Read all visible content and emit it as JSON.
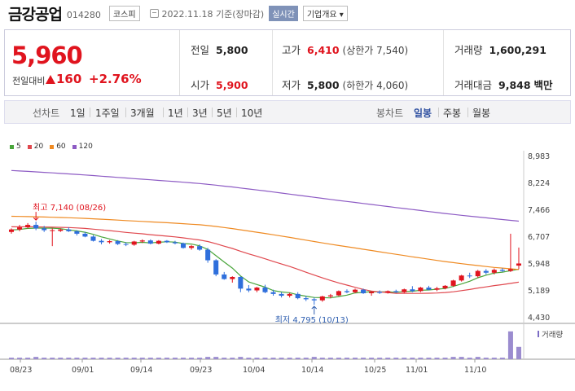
{
  "header": {
    "title": "금강공업",
    "code": "014280",
    "market": "코스피",
    "date": "2022.11.18 기준(장마감)",
    "realtime": "실시간",
    "overview": "기업개요 ▾"
  },
  "quote": {
    "price": "5,960",
    "change_label": "전일대비",
    "change": "160",
    "change_pct": "+2.76%",
    "prev_label": "전일",
    "prev": "5,800",
    "high_label": "고가",
    "high": "6,410",
    "upper_limit": "(상한가 7,540)",
    "volume_label": "거래량",
    "volume": "1,600,291",
    "open_label": "시가",
    "open": "5,900",
    "low_label": "저가",
    "low": "5,800",
    "lower_limit": "(하한가 4,060)",
    "amount_label": "거래대금",
    "amount": "9,848",
    "amount_unit": "백만"
  },
  "periods": {
    "line_label": "선차트",
    "line_items": [
      "1일",
      "1주일",
      "3개월",
      "1년",
      "3년",
      "5년",
      "10년"
    ],
    "candle_label": "봉차트",
    "candle_items": [
      "일봉",
      "주봉",
      "월봉"
    ],
    "active": "일봉"
  },
  "colors": {
    "up": "#e0141e",
    "down": "#2f6fdc",
    "ma5": "#49a53a",
    "ma20": "#e0484e",
    "ma60": "#ef8a22",
    "ma120": "#8d5bc4"
  },
  "chart_data": {
    "type": "candlestick",
    "legend": [
      "5",
      "20",
      "60",
      "120"
    ],
    "y_ticks": [
      8983,
      8224,
      7466,
      6707,
      5948,
      5189,
      4430
    ],
    "ylim": [
      4430,
      8983
    ],
    "x_labels": [
      "08/23",
      "09/01",
      "09/14",
      "09/23",
      "10/04",
      "10/14",
      "10/25",
      "11/01",
      "11/10"
    ],
    "high_annotation": "최고 7,140 (08/26)",
    "low_annotation": "최저 4,795 (10/13)",
    "volume_label": "거래량",
    "candles": [
      {
        "o": 6850,
        "h": 6950,
        "l": 6800,
        "c": 6920
      },
      {
        "o": 6920,
        "h": 7050,
        "l": 6870,
        "c": 6980
      },
      {
        "o": 6980,
        "h": 7100,
        "l": 6950,
        "c": 7050
      },
      {
        "o": 7050,
        "h": 7140,
        "l": 6900,
        "c": 6950
      },
      {
        "o": 6950,
        "h": 7020,
        "l": 6850,
        "c": 6900
      },
      {
        "o": 6900,
        "h": 6950,
        "l": 6450,
        "c": 6900
      },
      {
        "o": 6880,
        "h": 6950,
        "l": 6850,
        "c": 6920
      },
      {
        "o": 6920,
        "h": 6980,
        "l": 6850,
        "c": 6870
      },
      {
        "o": 6870,
        "h": 6900,
        "l": 6750,
        "c": 6800
      },
      {
        "o": 6800,
        "h": 6850,
        "l": 6700,
        "c": 6720
      },
      {
        "o": 6720,
        "h": 6760,
        "l": 6580,
        "c": 6600
      },
      {
        "o": 6600,
        "h": 6650,
        "l": 6500,
        "c": 6560
      },
      {
        "o": 6560,
        "h": 6620,
        "l": 6520,
        "c": 6590
      },
      {
        "o": 6590,
        "h": 6620,
        "l": 6480,
        "c": 6510
      },
      {
        "o": 6510,
        "h": 6560,
        "l": 6450,
        "c": 6490
      },
      {
        "o": 6490,
        "h": 6600,
        "l": 6460,
        "c": 6580
      },
      {
        "o": 6580,
        "h": 6640,
        "l": 6540,
        "c": 6610
      },
      {
        "o": 6610,
        "h": 6640,
        "l": 6500,
        "c": 6520
      },
      {
        "o": 6520,
        "h": 6620,
        "l": 6500,
        "c": 6600
      },
      {
        "o": 6600,
        "h": 6620,
        "l": 6540,
        "c": 6560
      },
      {
        "o": 6560,
        "h": 6600,
        "l": 6500,
        "c": 6530
      },
      {
        "o": 6530,
        "h": 6550,
        "l": 6380,
        "c": 6400
      },
      {
        "o": 6400,
        "h": 6480,
        "l": 6350,
        "c": 6450
      },
      {
        "o": 6450,
        "h": 6500,
        "l": 6320,
        "c": 6350
      },
      {
        "o": 6350,
        "h": 6400,
        "l": 5980,
        "c": 6050
      },
      {
        "o": 6050,
        "h": 6080,
        "l": 5600,
        "c": 5650
      },
      {
        "o": 5650,
        "h": 5720,
        "l": 5500,
        "c": 5520
      },
      {
        "o": 5520,
        "h": 5600,
        "l": 5420,
        "c": 5580
      },
      {
        "o": 5580,
        "h": 5600,
        "l": 5150,
        "c": 5250
      },
      {
        "o": 5250,
        "h": 5350,
        "l": 5150,
        "c": 5200
      },
      {
        "o": 5200,
        "h": 5300,
        "l": 5150,
        "c": 5280
      },
      {
        "o": 5280,
        "h": 5360,
        "l": 5120,
        "c": 5150
      },
      {
        "o": 5150,
        "h": 5220,
        "l": 5050,
        "c": 5100
      },
      {
        "o": 5100,
        "h": 5150,
        "l": 5000,
        "c": 5050
      },
      {
        "o": 5050,
        "h": 5130,
        "l": 5000,
        "c": 5100
      },
      {
        "o": 5100,
        "h": 5150,
        "l": 4950,
        "c": 4980
      },
      {
        "o": 4980,
        "h": 5050,
        "l": 4900,
        "c": 4950
      },
      {
        "o": 4950,
        "h": 5000,
        "l": 4795,
        "c": 4920
      },
      {
        "o": 4920,
        "h": 5050,
        "l": 4880,
        "c": 5030
      },
      {
        "o": 5030,
        "h": 5100,
        "l": 4980,
        "c": 5060
      },
      {
        "o": 5060,
        "h": 5200,
        "l": 5040,
        "c": 5180
      },
      {
        "o": 5180,
        "h": 5230,
        "l": 5120,
        "c": 5150
      },
      {
        "o": 5150,
        "h": 5250,
        "l": 5120,
        "c": 5220
      },
      {
        "o": 5220,
        "h": 5250,
        "l": 5100,
        "c": 5120
      },
      {
        "o": 5120,
        "h": 5180,
        "l": 5050,
        "c": 5160
      },
      {
        "o": 5160,
        "h": 5200,
        "l": 5100,
        "c": 5130
      },
      {
        "o": 5130,
        "h": 5200,
        "l": 5110,
        "c": 5180
      },
      {
        "o": 5180,
        "h": 5220,
        "l": 5130,
        "c": 5150
      },
      {
        "o": 5150,
        "h": 5250,
        "l": 5130,
        "c": 5230
      },
      {
        "o": 5230,
        "h": 5320,
        "l": 5150,
        "c": 5180
      },
      {
        "o": 5180,
        "h": 5300,
        "l": 5150,
        "c": 5280
      },
      {
        "o": 5280,
        "h": 5330,
        "l": 5200,
        "c": 5220
      },
      {
        "o": 5220,
        "h": 5300,
        "l": 5180,
        "c": 5260
      },
      {
        "o": 5260,
        "h": 5350,
        "l": 5230,
        "c": 5330
      },
      {
        "o": 5330,
        "h": 5500,
        "l": 5300,
        "c": 5480
      },
      {
        "o": 5480,
        "h": 5640,
        "l": 5450,
        "c": 5620
      },
      {
        "o": 5620,
        "h": 5700,
        "l": 5550,
        "c": 5600
      },
      {
        "o": 5600,
        "h": 5780,
        "l": 5560,
        "c": 5750
      },
      {
        "o": 5750,
        "h": 5800,
        "l": 5650,
        "c": 5700
      },
      {
        "o": 5700,
        "h": 5820,
        "l": 5650,
        "c": 5780
      },
      {
        "o": 5780,
        "h": 5830,
        "l": 5720,
        "c": 5750
      },
      {
        "o": 5750,
        "h": 6800,
        "l": 5720,
        "c": 5800
      },
      {
        "o": 5900,
        "h": 6410,
        "l": 5800,
        "c": 5960
      }
    ],
    "volume": [
      2,
      2,
      2,
      3,
      2,
      2,
      2,
      2,
      2,
      2,
      2,
      2,
      2,
      2,
      2,
      2,
      2,
      2,
      2,
      2,
      2,
      2,
      2,
      2,
      3,
      3,
      2,
      2,
      3,
      2,
      2,
      2,
      2,
      2,
      2,
      2,
      2,
      3,
      2,
      2,
      2,
      2,
      2,
      2,
      2,
      2,
      2,
      2,
      2,
      2,
      2,
      2,
      2,
      2,
      3,
      3,
      2,
      3,
      2,
      2,
      2,
      36,
      16
    ]
  }
}
